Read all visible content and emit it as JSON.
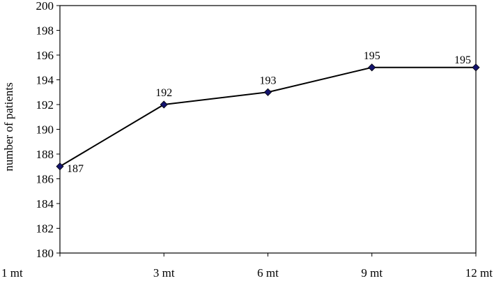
{
  "chart_data": {
    "type": "line",
    "title": "",
    "xlabel": "",
    "ylabel": "number of patients",
    "categories": [
      "1 mt",
      "3 mt",
      "6 mt",
      "9 mt",
      "12 mt"
    ],
    "series": [
      {
        "values": [
          187,
          192,
          193,
          195,
          195
        ],
        "line_color": "#000000",
        "marker": "diamond",
        "marker_color": "#14146e"
      }
    ],
    "data_labels": [
      "187",
      "192",
      "193",
      "195",
      "195"
    ],
    "ylim": [
      180,
      200
    ],
    "y_ticks": [
      "180",
      "182",
      "184",
      "186",
      "188",
      "190",
      "192",
      "194",
      "196",
      "198",
      "200"
    ],
    "grid": false,
    "legend": "none"
  }
}
